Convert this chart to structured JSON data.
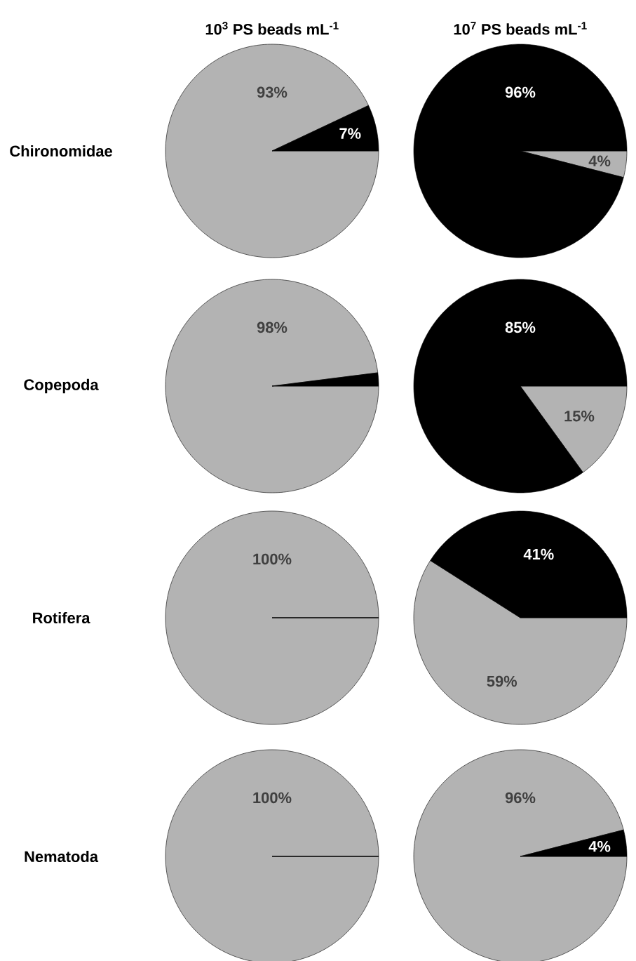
{
  "chart_data": [
    {
      "type": "pie",
      "title": "10$^{3}$ PS beads mL$^{-1}$",
      "ylabel": "Chironomidae",
      "categories": [
        null,
        null
      ],
      "values": [
        93,
        7
      ],
      "colors": [
        "#b3b3b3",
        "#000000"
      ],
      "value_labels": [
        "93%",
        "7%"
      ]
    },
    {
      "type": "pie",
      "title": "10$^{7}$ PS beads mL$^{-1}$",
      "categories": [
        null,
        null
      ],
      "values": [
        4,
        96
      ],
      "colors": [
        "#b3b3b3",
        "#000000"
      ],
      "value_labels": [
        "4%",
        "96%"
      ]
    },
    {
      "type": "pie",
      "ylabel": "Copepoda",
      "categories": [
        null,
        null
      ],
      "values": [
        98,
        2
      ],
      "colors": [
        "#b3b3b3",
        "#000000"
      ],
      "value_labels": [
        "98%",
        null
      ]
    },
    {
      "type": "pie",
      "categories": [
        null,
        null
      ],
      "values": [
        15,
        85
      ],
      "colors": [
        "#b3b3b3",
        "#000000"
      ],
      "value_labels": [
        "15%",
        "85%"
      ]
    },
    {
      "type": "pie",
      "ylabel": "Rotifera",
      "categories": [
        null,
        null
      ],
      "values": [
        100,
        0
      ],
      "colors": [
        "#b3b3b3",
        "#000000"
      ],
      "value_labels": [
        "100%",
        null
      ]
    },
    {
      "type": "pie",
      "categories": [
        null,
        null
      ],
      "values": [
        59,
        41
      ],
      "colors": [
        "#b3b3b3",
        "#000000"
      ],
      "value_labels": [
        "59%",
        "41%"
      ]
    },
    {
      "type": "pie",
      "ylabel": "Nematoda",
      "categories": [
        null,
        null
      ],
      "values": [
        100,
        0
      ],
      "colors": [
        "#b3b3b3",
        "#000000"
      ],
      "value_labels": [
        "100%",
        null
      ]
    },
    {
      "type": "pie",
      "categories": [
        null,
        null
      ],
      "values": [
        96,
        4
      ],
      "colors": [
        "#b3b3b3",
        "#000000"
      ],
      "value_labels": [
        "96%",
        "4%"
      ]
    }
  ]
}
